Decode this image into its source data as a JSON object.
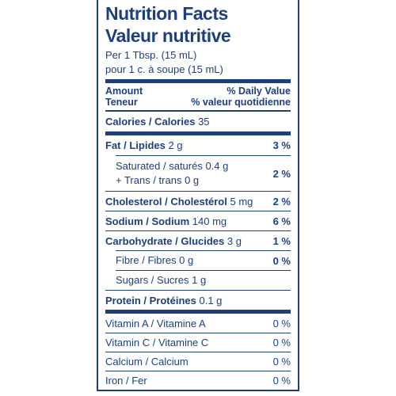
{
  "header": {
    "title_en": "Nutrition Facts",
    "title_fr": "Valeur nutritive",
    "serving_en": "Per 1 Tbsp. (15 mL)",
    "serving_fr": "pour 1 c. à soupe (15 mL)"
  },
  "columns": {
    "amount_en": "Amount",
    "amount_fr": "Teneur",
    "dv_en": "% Daily Value",
    "dv_fr": "% valeur quotidienne"
  },
  "calories": {
    "label": "Calories / Calories",
    "amount": "35"
  },
  "nutrients": [
    {
      "label": "Fat / Lipides",
      "amount": "2 g",
      "dv": "3 %"
    },
    {
      "lines": [
        "Saturated / saturés 0.4 g",
        "+ Trans / trans 0 g"
      ],
      "dv": "2 %"
    },
    {
      "label": "Cholesterol / Cholestérol",
      "amount": "5 mg",
      "dv": "2 %"
    },
    {
      "label": "Sodium / Sodium",
      "amount": "140 mg",
      "dv": "6 %"
    },
    {
      "label": "Carbohydrate / Glucides",
      "amount": "3 g",
      "dv": "1 %"
    },
    {
      "lines": [
        "Fibre / Fibres 0 g"
      ],
      "dv": "0 %"
    },
    {
      "lines": [
        "Sugars / Sucres 1 g"
      ]
    },
    {
      "label": "Protein / Protéines",
      "amount": "0.1 g"
    }
  ],
  "vitamins": [
    {
      "label": "Vitamin A / Vitamine A",
      "dv": "0 %"
    },
    {
      "label": "Vitamin C / Vitamine C",
      "dv": "0 %"
    },
    {
      "label": "Calcium / Calcium",
      "dv": "0 %"
    },
    {
      "label": "Iron / Fer",
      "dv": "0 %"
    }
  ]
}
